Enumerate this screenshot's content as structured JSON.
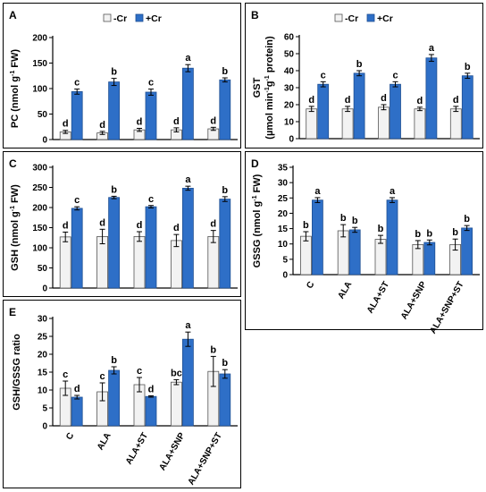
{
  "legend": {
    "control": "-Cr",
    "treated": "+Cr"
  },
  "colors": {
    "control": "#f2f2f2",
    "treated": "#2e6fc7",
    "treated_edge": "#1f4f92",
    "axis": "#000000"
  },
  "chart_data": [
    {
      "id": "A",
      "type": "bar",
      "panel_label": "A",
      "ylabel": "PC (nmol g-1 FW)",
      "ylabel_parts": [
        "PC (nmol g",
        "-1",
        " FW)"
      ],
      "ylim": [
        0,
        200
      ],
      "yticks": [
        0,
        50,
        100,
        150,
        200
      ],
      "categories": [
        "",
        "",
        "",
        "",
        ""
      ],
      "show_legend": true,
      "series": [
        {
          "name": "-Cr",
          "values": [
            15,
            13,
            19,
            19,
            21
          ],
          "errors": [
            3,
            3,
            3,
            4,
            3
          ],
          "letters": [
            "d",
            "d",
            "d",
            "d",
            "d"
          ]
        },
        {
          "name": "+Cr",
          "values": [
            94,
            113,
            93,
            140,
            117
          ],
          "errors": [
            5,
            7,
            6,
            7,
            4
          ],
          "letters": [
            "c",
            "b",
            "c",
            "a",
            "b"
          ]
        }
      ]
    },
    {
      "id": "B",
      "type": "bar",
      "panel_label": "B",
      "ylabel": "GST (µmol min-1 g-1 protein)",
      "ylabel_line1": "GST",
      "ylabel_line2_parts": [
        "(µmol min",
        "-1",
        "g",
        "-1",
        "protein)"
      ],
      "ylim": [
        0,
        60
      ],
      "yticks": [
        0,
        10,
        20,
        30,
        40,
        50,
        60
      ],
      "categories": [
        "",
        "",
        "",
        "",
        ""
      ],
      "show_legend": true,
      "series": [
        {
          "name": "-Cr",
          "values": [
            17.5,
            17.5,
            18.5,
            17.5,
            17.5
          ],
          "errors": [
            1.5,
            1.5,
            1.5,
            1.0,
            1.5
          ],
          "letters": [
            "d",
            "d",
            "d",
            "d",
            "d"
          ]
        },
        {
          "name": "+Cr",
          "values": [
            32,
            38.5,
            32,
            47.5,
            37
          ],
          "errors": [
            1.5,
            1.5,
            1.5,
            2.0,
            1.5
          ],
          "letters": [
            "c",
            "b",
            "c",
            "a",
            "b"
          ]
        }
      ]
    },
    {
      "id": "C",
      "type": "bar",
      "panel_label": "C",
      "ylabel": "GSH (nmol g-1 FW)",
      "ylabel_parts": [
        "GSH (nmol g",
        "-1",
        " FW)"
      ],
      "ylim": [
        0,
        300
      ],
      "yticks": [
        0,
        50,
        100,
        150,
        200,
        250,
        300
      ],
      "categories": [
        "",
        "",
        "",
        "",
        ""
      ],
      "show_legend": false,
      "series": [
        {
          "name": "-Cr",
          "values": [
            127,
            128,
            128,
            118,
            128
          ],
          "errors": [
            12,
            18,
            12,
            15,
            15
          ],
          "letters": [
            "d",
            "d",
            "d",
            "d",
            "d"
          ]
        },
        {
          "name": "+Cr",
          "values": [
            198,
            225,
            202,
            248,
            221
          ],
          "errors": [
            4,
            3,
            3,
            5,
            6
          ],
          "letters": [
            "c",
            "b",
            "c",
            "a",
            "b"
          ]
        }
      ]
    },
    {
      "id": "D",
      "type": "bar",
      "panel_label": "D",
      "ylabel": "GSSG (nmol g-1 FW)",
      "ylabel_parts": [
        "GSSG (nmol g",
        "-1",
        " FW)"
      ],
      "ylim": [
        0,
        35
      ],
      "yticks": [
        0,
        5,
        10,
        15,
        20,
        25,
        30,
        35
      ],
      "categories": [
        "C",
        "ALA",
        "ALA+ST",
        "ALA+SNP",
        "ALA+SNP+ST"
      ],
      "show_legend": false,
      "series": [
        {
          "name": "-Cr",
          "values": [
            12.5,
            14.3,
            11.5,
            9.8,
            9.8
          ],
          "errors": [
            1.5,
            2.0,
            1.3,
            1.3,
            1.8
          ],
          "letters": [
            "b",
            "b",
            "b",
            "b",
            "b"
          ]
        },
        {
          "name": "+Cr",
          "values": [
            24.3,
            14.6,
            24.3,
            10.5,
            15.2
          ],
          "errors": [
            0.8,
            0.8,
            0.8,
            0.8,
            0.8
          ],
          "letters": [
            "a",
            "b",
            "a",
            "b",
            "b"
          ]
        }
      ]
    },
    {
      "id": "E",
      "type": "bar",
      "panel_label": "E",
      "ylabel": "GSH/GSSG ratio",
      "ylim": [
        0,
        30
      ],
      "yticks": [
        0,
        5,
        10,
        15,
        20,
        25,
        30
      ],
      "categories": [
        "C",
        "ALA",
        "ALA+ST",
        "ALA+SNP",
        "ALA+SNP+ST"
      ],
      "show_legend": false,
      "series": [
        {
          "name": "-Cr",
          "values": [
            10.5,
            9.5,
            11.5,
            12.2,
            15.2
          ],
          "errors": [
            2.0,
            2.5,
            2.0,
            0.7,
            4.2
          ],
          "letters": [
            "c",
            "c",
            "c",
            "bc",
            "b"
          ]
        },
        {
          "name": "+Cr",
          "values": [
            8.0,
            15.5,
            8.2,
            24.2,
            14.5
          ],
          "errors": [
            0.5,
            1.0,
            0.2,
            2.0,
            1.2
          ],
          "letters": [
            "d",
            "b",
            "d",
            "a",
            "b"
          ]
        }
      ]
    }
  ]
}
